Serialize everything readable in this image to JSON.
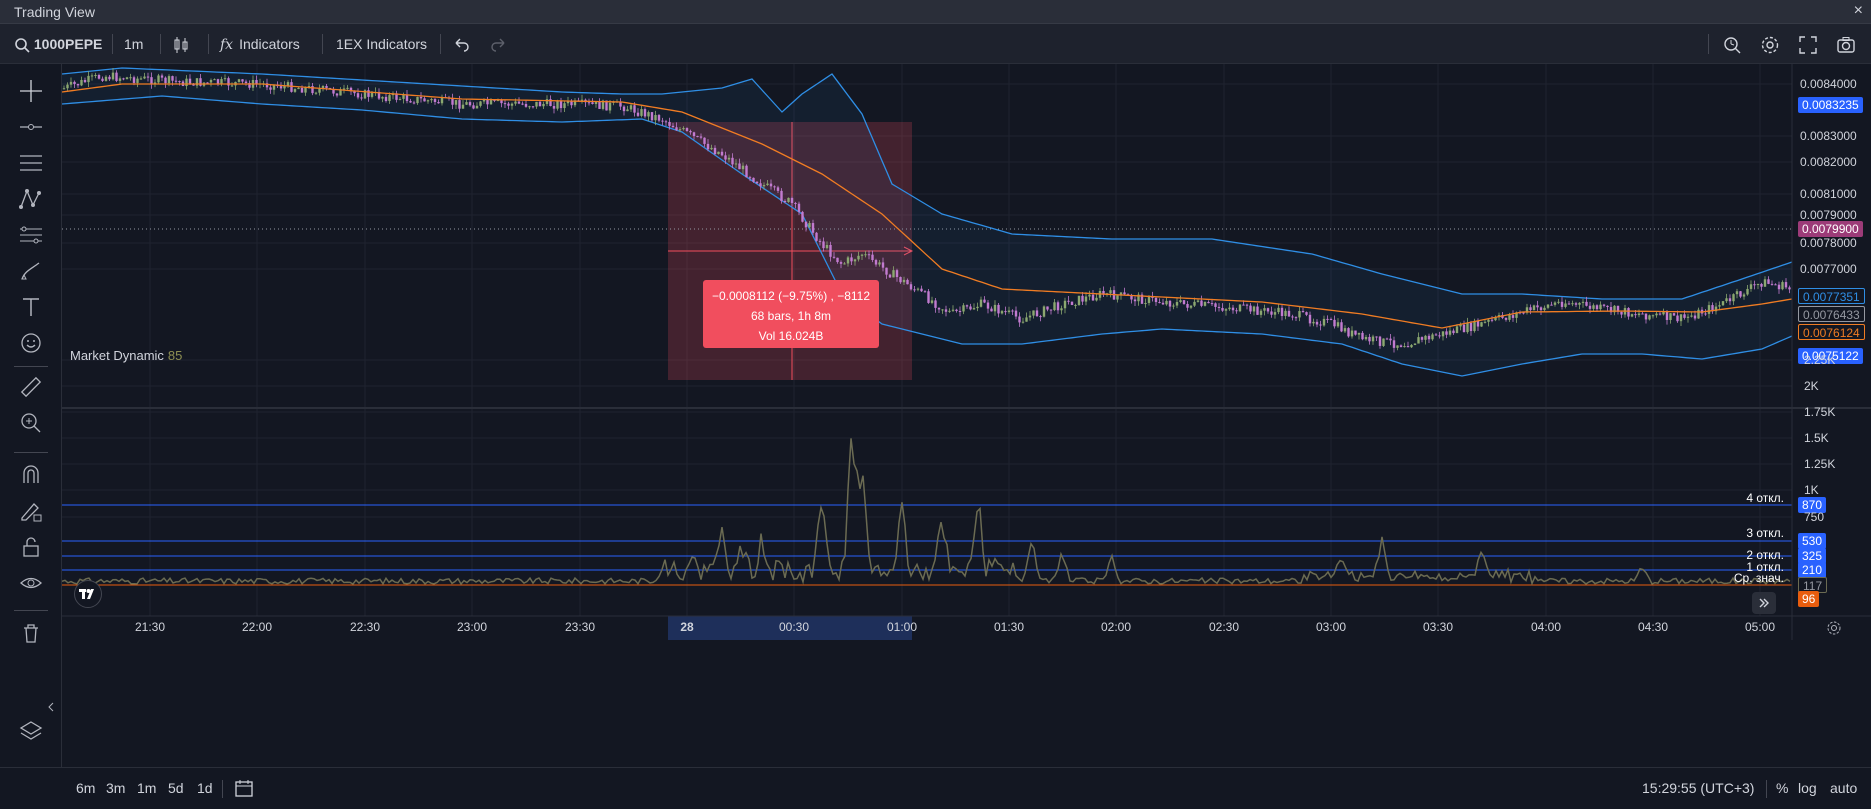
{
  "window": {
    "title": "Trading View",
    "close": "×"
  },
  "toolbar": {
    "symbol": "1000PEPE",
    "interval": "1m",
    "indicators_label": "Indicators",
    "custom_indicators_label": "1EX Indicators"
  },
  "price_axis": {
    "ticks": [
      "0.0084000",
      "0.0083000",
      "0.0082000",
      "0.0081000",
      "0.0079000",
      "0.0078000",
      "0.0077000"
    ],
    "tags": {
      "bb_upper": "0.0083235",
      "crosshair": "0.0079900",
      "bb_upper2": "0.0077351",
      "last_price": "0.0076433",
      "ma": "0.0076124",
      "bb_lower": "0.0075122"
    }
  },
  "volume_axis": {
    "ticks": [
      "2.25K",
      "2K",
      "1.75K",
      "1.5K",
      "1.25K",
      "1K",
      "750"
    ]
  },
  "measure": {
    "line1": "−0.0008112 (−9.75%) , −8112",
    "line2": "68 bars, 1h 8m",
    "line3": "Vol 16.024B"
  },
  "indicator_pane": {
    "title": "Market Dynamic",
    "value": "85",
    "levels": [
      {
        "label": "4 откл.",
        "value": "870"
      },
      {
        "label": "3 откл.",
        "value": "530"
      },
      {
        "label": "2 откл.",
        "value": "325"
      },
      {
        "label": "1 откл.",
        "value": "210"
      },
      {
        "label": "Ср. знач.",
        "value": "117"
      }
    ],
    "current_value": "96"
  },
  "time_axis": {
    "ticks": [
      "21:30",
      "22:00",
      "22:30",
      "23:00",
      "23:30",
      "28",
      "00:30",
      "01:00",
      "01:30",
      "02:00",
      "02:30",
      "03:00",
      "03:30",
      "04:00",
      "04:30",
      "05:00"
    ]
  },
  "bottombar": {
    "ranges": [
      "6m",
      "3m",
      "1m",
      "5d",
      "1d"
    ],
    "clock": "15:29:55 (UTC+3)",
    "percent": "%",
    "log": "log",
    "auto": "auto"
  },
  "colors": {
    "background": "#131722",
    "bollinger": "#2f8ee5",
    "ma": "#f07c23",
    "up_candle": "#8ba870",
    "down_candle": "#c27bd0",
    "measure_box": "#f14e5e",
    "level_line": "#2962ff",
    "indicator_line": "#6b6b52"
  }
}
